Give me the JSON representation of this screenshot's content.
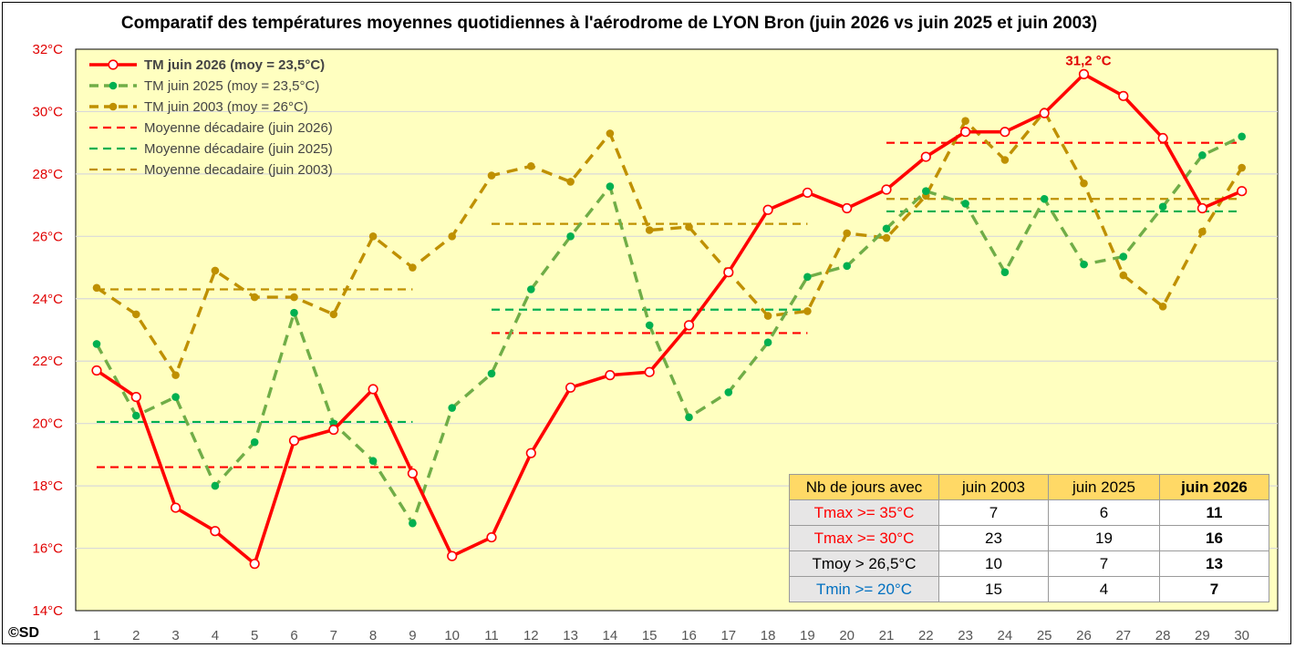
{
  "chart_data": {
    "type": "line",
    "title": "Comparatif des températures moyennes quotidiennes à l'aérodrome de LYON Bron (juin 2026 vs juin 2025 et juin 2003)",
    "x": [
      1,
      2,
      3,
      4,
      5,
      6,
      7,
      8,
      9,
      10,
      11,
      12,
      13,
      14,
      15,
      16,
      17,
      18,
      19,
      20,
      21,
      22,
      23,
      24,
      25,
      26,
      27,
      28,
      29,
      30
    ],
    "x_tick_labels": [
      "1",
      "2",
      "3",
      "4",
      "5",
      "6",
      "7",
      "8",
      "9",
      "10",
      "11",
      "12",
      "13",
      "14",
      "15",
      "16",
      "17",
      "18",
      "19",
      "20",
      "21",
      "22",
      "23",
      "24",
      "25",
      "26",
      "27",
      "28",
      "29",
      "30"
    ],
    "ylim": [
      14,
      32
    ],
    "y_tick_labels": [
      "14°C",
      "16°C",
      "18°C",
      "20°C",
      "22°C",
      "24°C",
      "26°C",
      "28°C",
      "30°C",
      "32°C"
    ],
    "y_ticks": [
      14,
      16,
      18,
      20,
      22,
      24,
      26,
      28,
      30,
      32
    ],
    "grid": true,
    "legend_position": "top-left",
    "series": [
      {
        "name": "TM juin 2026 (moy = 23,5°C)",
        "color": "#ff0000",
        "style": "solid",
        "marker": "hollow-circle",
        "values": [
          21.7,
          20.85,
          17.3,
          16.55,
          15.5,
          19.45,
          19.8,
          21.1,
          18.4,
          15.75,
          16.35,
          19.05,
          21.15,
          21.55,
          21.65,
          23.15,
          24.85,
          26.85,
          27.4,
          26.9,
          27.5,
          28.55,
          29.35,
          29.35,
          29.95,
          31.2,
          30.5,
          29.15,
          26.9,
          27.45
        ]
      },
      {
        "name": "TM juin 2025 (moy = 23,5°C)",
        "color": "#70ad47",
        "style": "dashed",
        "marker": "filled-circle",
        "values": [
          22.55,
          20.25,
          20.85,
          18.0,
          19.4,
          23.55,
          20.0,
          18.8,
          16.8,
          20.5,
          21.6,
          24.3,
          26.0,
          27.6,
          23.15,
          20.2,
          21.0,
          22.6,
          24.7,
          25.05,
          26.25,
          27.45,
          27.05,
          24.85,
          27.2,
          25.1,
          25.35,
          26.95,
          28.6,
          29.2
        ]
      },
      {
        "name": "TM juin 2003 (moy = 26°C)",
        "color": "#bf9000",
        "style": "dashed",
        "marker": "filled-circle",
        "values": [
          24.35,
          23.5,
          21.55,
          24.9,
          24.05,
          24.05,
          23.5,
          26.0,
          25.0,
          26.0,
          27.95,
          28.25,
          27.75,
          29.3,
          26.2,
          26.3,
          24.85,
          23.45,
          23.6,
          26.1,
          25.95,
          27.3,
          29.7,
          28.45,
          30.0,
          27.7,
          24.75,
          23.75,
          26.15,
          28.2
        ]
      }
    ],
    "decade_means": [
      {
        "name": "Moyenne décadaire (juin 2026)",
        "color": "#ff0000",
        "segments": [
          {
            "from": 1,
            "to": 9,
            "value": 18.6
          },
          {
            "from": 11,
            "to": 19,
            "value": 22.9
          },
          {
            "from": 21,
            "to": 30,
            "value": 29.0
          }
        ]
      },
      {
        "name": "Moyenne décadaire (juin 2025)",
        "color": "#00b050",
        "segments": [
          {
            "from": 1,
            "to": 9,
            "value": 20.05
          },
          {
            "from": 11,
            "to": 19,
            "value": 23.65
          },
          {
            "from": 21,
            "to": 30,
            "value": 26.8
          }
        ]
      },
      {
        "name": "Moyenne decadaire (juin 2003)",
        "color": "#bf9000",
        "segments": [
          {
            "from": 1,
            "to": 9,
            "value": 24.3
          },
          {
            "from": 11,
            "to": 19,
            "value": 26.4
          },
          {
            "from": 21,
            "to": 30,
            "value": 27.2
          }
        ]
      }
    ],
    "annotations": [
      {
        "text": "31,2 °C",
        "x": 26,
        "y": 31.2
      }
    ]
  },
  "copyright": "©SD",
  "stats_table": {
    "header": [
      "Nb de jours avec",
      "juin 2003",
      "juin 2025",
      "juin 2026"
    ],
    "rows": [
      {
        "label": "Tmax >= 35°C",
        "label_color": "#ff0000",
        "values": [
          "7",
          "6",
          "11"
        ]
      },
      {
        "label": "Tmax >= 30°C",
        "label_color": "#ff0000",
        "values": [
          "23",
          "19",
          "16"
        ]
      },
      {
        "label": "Tmoy > 26,5°C",
        "label_color": "#000000",
        "values": [
          "10",
          "7",
          "13"
        ]
      },
      {
        "label": "Tmin >= 20°C",
        "label_color": "#0070c0",
        "values": [
          "15",
          "4",
          "7"
        ]
      }
    ]
  },
  "colors": {
    "plot_background": "#ffffc0",
    "gridline": "#d9d9d9",
    "table_header": "#ffd966",
    "table_label_bg": "#e7e6e6"
  }
}
